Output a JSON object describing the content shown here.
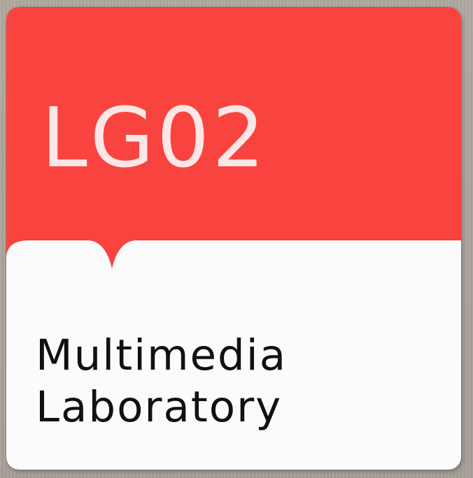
{
  "sign": {
    "room_code": "LG02",
    "room_name_line1": "Multimedia",
    "room_name_line2": "Laboratory"
  },
  "colors": {
    "accent_red": "#f9433f",
    "code_text": "#fde6e6",
    "panel_white": "#fbfbfb",
    "name_text": "#111111",
    "wall": "#a9a39c"
  }
}
